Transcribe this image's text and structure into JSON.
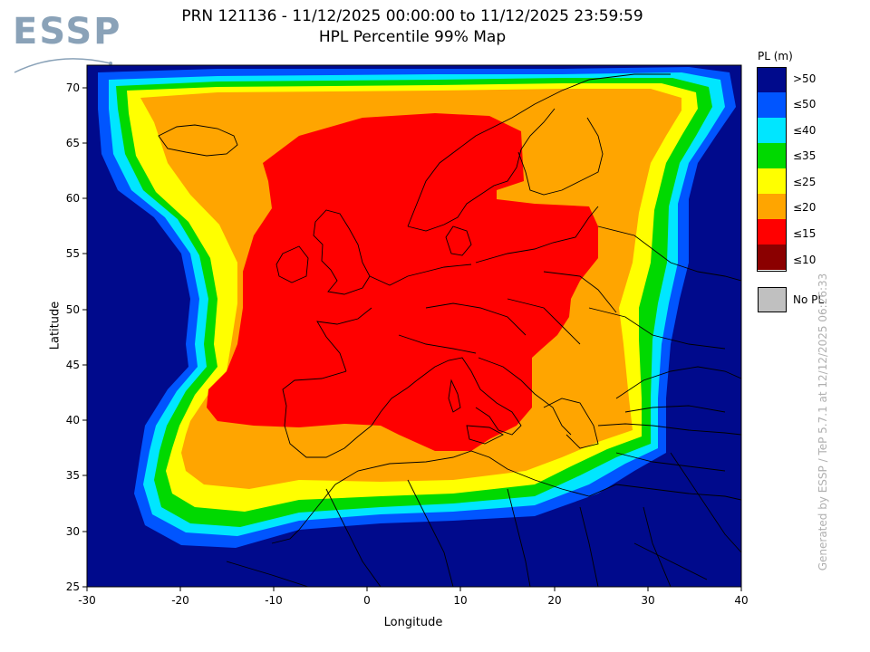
{
  "logo": {
    "text": "ESSP"
  },
  "header": {
    "title_line1": "PRN 121136 - 11/12/2025 00:00:00 to 11/12/2025 23:59:59",
    "title_line2": "HPL Percentile 99% Map"
  },
  "axes": {
    "xlabel": "Longitude",
    "ylabel": "Latitude",
    "x_range": [
      -30,
      40
    ],
    "y_range": [
      25,
      72
    ],
    "x_ticks": [
      "-30",
      "-20",
      "-10",
      "0",
      "10",
      "20",
      "30",
      "40"
    ],
    "y_ticks": [
      "25",
      "30",
      "35",
      "40",
      "45",
      "50",
      "55",
      "60",
      "65",
      "70"
    ]
  },
  "legend": {
    "title": "PL (m)",
    "items": [
      {
        "label": ">50",
        "color": "#000a8c"
      },
      {
        "label": "≤50",
        "color": "#0055ff"
      },
      {
        "label": "≤40",
        "color": "#00e6ff"
      },
      {
        "label": "≤35",
        "color": "#00d900"
      },
      {
        "label": "≤25",
        "color": "#ffff00"
      },
      {
        "label": "≤20",
        "color": "#ffa500"
      },
      {
        "label": "≤15",
        "color": "#ff0000"
      },
      {
        "label": "≤10",
        "color": "#8b0000"
      }
    ],
    "no_pl": {
      "label": "No PL",
      "color": "#c0c0c0"
    }
  },
  "credit": "Generated by ESSP / TeP 5.7.1 at 12/12/2025 06:26:33",
  "colors": {
    "background_sea": "#000a8c",
    "coast_lines": "#000000"
  }
}
